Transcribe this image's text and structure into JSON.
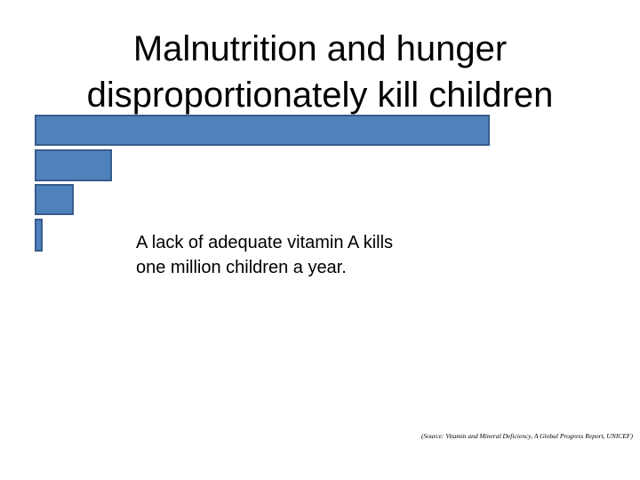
{
  "title": [
    "Malnutrition and hunger",
    "disproportionately kill children"
  ],
  "body": [
    "A lack of adequate vitamin A kills",
    "one million children a year."
  ],
  "source": "(Source: Vitamin and Mineral Deficiency, A Global Progress Report, UNICEF)"
}
